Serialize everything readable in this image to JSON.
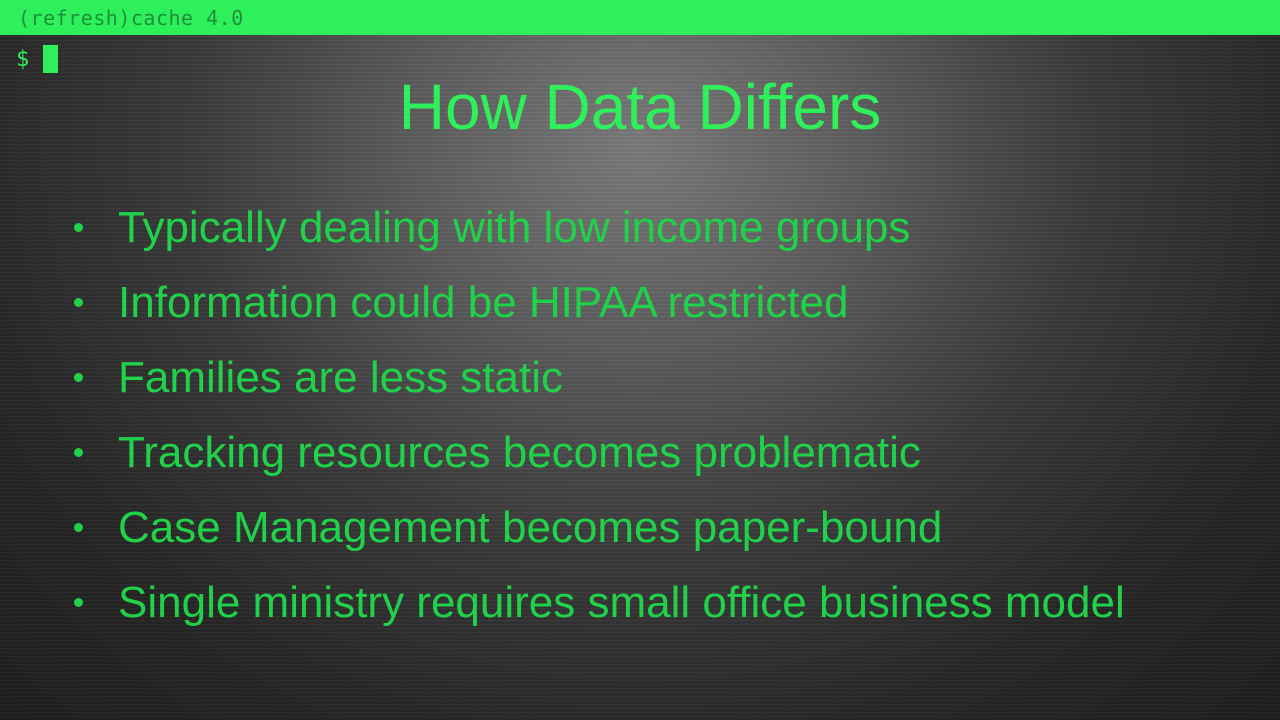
{
  "topbar": {
    "title": "(refresh)cache 4.0"
  },
  "terminal": {
    "prompt_symbol": "$"
  },
  "slide": {
    "title": "How Data Differs",
    "bullets": [
      "Typically dealing with low income groups",
      "Information could be HIPAA restricted",
      "Families are less static",
      "Tracking resources becomes problematic",
      "Case Management becomes paper-bound",
      "Single ministry requires small office business model"
    ]
  },
  "colors": {
    "accent": "#2ef05a",
    "text": "#1fd24a",
    "background": "#3a3a3a"
  }
}
